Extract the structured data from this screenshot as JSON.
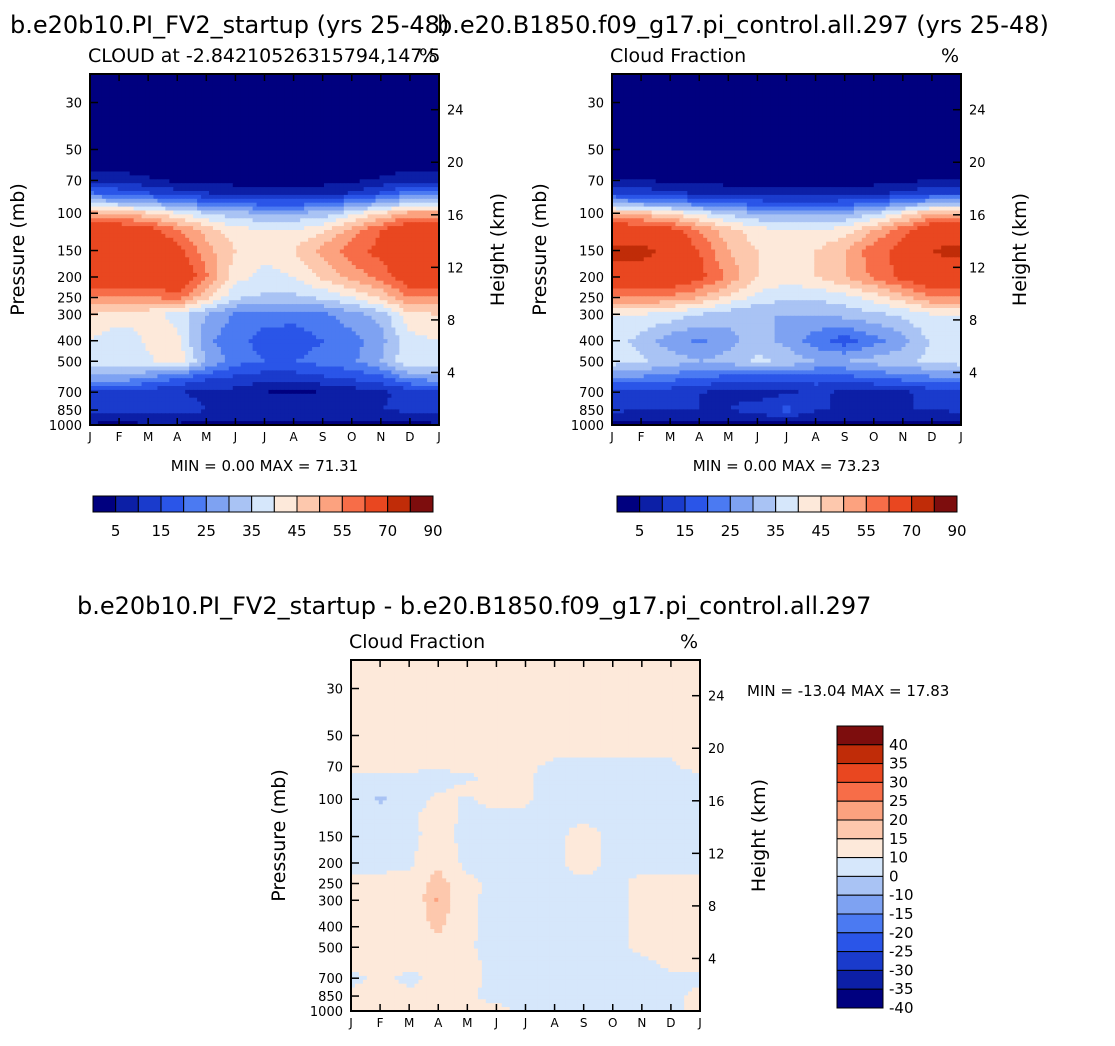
{
  "chart_data": [
    {
      "type": "heatmap",
      "id": "run",
      "main_title": "b.e20b10.PI_FV2_startup (yrs 25-48)",
      "subtitle_left": "CLOUD at -2.84210526315794,147.5",
      "subtitle_right": "%",
      "ylabel": "Pressure (mb)",
      "ylabel_right": "Height (km)",
      "min_max": "MIN =    0.00  MAX =   71.31",
      "x_ticks": [
        "J",
        "F",
        "M",
        "A",
        "M",
        "J",
        "J",
        "A",
        "S",
        "O",
        "N",
        "D",
        "J"
      ],
      "y_ticks": [
        30,
        50,
        70,
        100,
        150,
        200,
        250,
        300,
        400,
        500,
        700,
        850,
        1000
      ],
      "y_range_mb": [
        22,
        1000
      ],
      "height_ticks_km": [
        24,
        20,
        16,
        12,
        8,
        4
      ],
      "colorbar": {
        "levels": [
          5,
          10,
          15,
          20,
          25,
          30,
          35,
          40,
          45,
          50,
          55,
          60,
          70,
          80,
          90
        ],
        "labels": [
          "5",
          "15",
          "25",
          "35",
          "45",
          "55",
          "70",
          "90"
        ],
        "colors": [
          "#00007f",
          "#0c1fa6",
          "#1a3bcc",
          "#2a55e8",
          "#4b7af2",
          "#7ea2f2",
          "#a9c3f4",
          "#d6e7fb",
          "#fde9da",
          "#fdc8ad",
          "#fca27f",
          "#f76d48",
          "#e94720",
          "#c02c08",
          "#7d0d0d"
        ]
      },
      "months": [
        "J",
        "F",
        "M",
        "A",
        "M",
        "J",
        "J",
        "A",
        "S",
        "O",
        "N",
        "D"
      ],
      "profile_levels_mb": [
        22,
        30,
        50,
        60,
        70,
        80,
        90,
        100,
        120,
        150,
        200,
        250,
        300,
        400,
        500,
        600,
        700,
        850,
        1000
      ],
      "grid": [
        [
          0,
          0,
          0,
          0,
          0,
          0,
          0,
          0,
          0,
          0,
          0,
          0
        ],
        [
          0,
          0,
          0,
          0,
          0,
          0,
          0,
          0,
          0,
          0,
          0,
          0
        ],
        [
          1,
          1,
          1,
          1,
          1,
          1,
          1,
          1,
          1,
          1,
          1,
          1
        ],
        [
          3,
          3,
          2,
          2,
          2,
          2,
          2,
          2,
          2,
          2,
          2,
          3
        ],
        [
          9,
          8,
          6,
          4,
          4,
          3,
          3,
          3,
          3,
          4,
          6,
          9
        ],
        [
          20,
          18,
          15,
          12,
          10,
          8,
          8,
          8,
          8,
          10,
          15,
          22
        ],
        [
          35,
          33,
          30,
          26,
          22,
          20,
          18,
          18,
          20,
          25,
          30,
          35
        ],
        [
          52,
          50,
          46,
          40,
          35,
          32,
          30,
          30,
          32,
          38,
          45,
          52
        ],
        [
          66,
          66,
          63,
          56,
          48,
          42,
          40,
          40,
          44,
          52,
          60,
          66
        ],
        [
          70,
          70,
          68,
          62,
          52,
          45,
          42,
          45,
          52,
          58,
          62,
          66
        ],
        [
          65,
          66,
          66,
          68,
          56,
          42,
          38,
          40,
          46,
          52,
          57,
          65
        ],
        [
          55,
          55,
          54,
          58,
          46,
          36,
          34,
          34,
          36,
          40,
          46,
          55
        ],
        [
          45,
          44,
          42,
          38,
          30,
          24,
          22,
          22,
          24,
          28,
          32,
          44
        ],
        [
          40,
          35,
          41,
          42,
          26,
          22,
          18,
          17,
          20,
          23,
          28,
          38
        ],
        [
          38,
          40,
          39,
          44,
          30,
          22,
          20,
          20,
          22,
          24,
          30,
          40
        ],
        [
          28,
          28,
          25,
          20,
          16,
          14,
          12,
          12,
          14,
          16,
          18,
          26
        ],
        [
          14,
          14,
          12,
          10,
          9,
          8,
          5,
          4,
          5,
          7,
          9,
          12
        ],
        [
          12,
          11,
          12,
          13,
          10,
          9,
          9,
          9,
          9,
          10,
          10,
          11
        ],
        [
          4,
          4,
          4,
          4,
          3,
          3,
          3,
          3,
          3,
          3,
          3,
          4
        ]
      ]
    },
    {
      "type": "heatmap",
      "id": "control",
      "main_title": "b.e20.B1850.f09_g17.pi_control.all.297 (yrs 25-48)",
      "subtitle_left": "Cloud Fraction",
      "subtitle_right": "%",
      "ylabel": "Pressure (mb)",
      "ylabel_right": "Height (km)",
      "min_max": "MIN =    0.00  MAX =   73.23",
      "x_ticks": [
        "J",
        "F",
        "M",
        "A",
        "M",
        "J",
        "J",
        "A",
        "S",
        "O",
        "N",
        "D",
        "J"
      ],
      "y_ticks": [
        30,
        50,
        70,
        100,
        150,
        200,
        250,
        300,
        400,
        500,
        700,
        850,
        1000
      ],
      "y_range_mb": [
        22,
        1000
      ],
      "height_ticks_km": [
        24,
        20,
        16,
        12,
        8,
        4
      ],
      "colorbar": {
        "levels": [
          5,
          10,
          15,
          20,
          25,
          30,
          35,
          40,
          45,
          50,
          55,
          60,
          70,
          80,
          90
        ],
        "labels": [
          "5",
          "15",
          "25",
          "35",
          "45",
          "55",
          "70",
          "90"
        ],
        "colors": [
          "#00007f",
          "#0c1fa6",
          "#1a3bcc",
          "#2a55e8",
          "#4b7af2",
          "#7ea2f2",
          "#a9c3f4",
          "#d6e7fb",
          "#fde9da",
          "#fdc8ad",
          "#fca27f",
          "#f76d48",
          "#e94720",
          "#c02c08",
          "#7d0d0d"
        ]
      },
      "months": [
        "J",
        "F",
        "M",
        "A",
        "M",
        "J",
        "J",
        "A",
        "S",
        "O",
        "N",
        "D"
      ],
      "profile_levels_mb": [
        22,
        30,
        50,
        60,
        70,
        80,
        90,
        100,
        120,
        150,
        200,
        250,
        300,
        400,
        500,
        600,
        700,
        850,
        1000
      ],
      "grid": [
        [
          0,
          0,
          0,
          0,
          0,
          0,
          0,
          0,
          0,
          0,
          0,
          0
        ],
        [
          0,
          0,
          0,
          0,
          0,
          0,
          0,
          0,
          0,
          0,
          0,
          0
        ],
        [
          1,
          1,
          1,
          1,
          1,
          1,
          1,
          1,
          1,
          1,
          1,
          1
        ],
        [
          2,
          2,
          2,
          2,
          2,
          2,
          2,
          2,
          2,
          2,
          2,
          2
        ],
        [
          5,
          5,
          4,
          3,
          3,
          3,
          3,
          3,
          3,
          3,
          4,
          5
        ],
        [
          14,
          13,
          11,
          9,
          8,
          7,
          7,
          7,
          7,
          8,
          11,
          14
        ],
        [
          30,
          28,
          26,
          22,
          20,
          18,
          17,
          17,
          18,
          20,
          26,
          30
        ],
        [
          50,
          48,
          44,
          38,
          33,
          30,
          28,
          28,
          30,
          34,
          42,
          50
        ],
        [
          66,
          66,
          63,
          55,
          47,
          42,
          40,
          40,
          42,
          50,
          58,
          66
        ],
        [
          72,
          72,
          68,
          60,
          50,
          45,
          43,
          45,
          50,
          58,
          62,
          70
        ],
        [
          66,
          67,
          67,
          62,
          54,
          45,
          42,
          45,
          50,
          56,
          62,
          67
        ],
        [
          55,
          55,
          54,
          50,
          44,
          38,
          36,
          36,
          38,
          42,
          48,
          55
        ],
        [
          40,
          40,
          38,
          35,
          32,
          30,
          30,
          30,
          32,
          34,
          36,
          40
        ],
        [
          38,
          33,
          27,
          24,
          28,
          33,
          28,
          22,
          17,
          23,
          28,
          36
        ],
        [
          38,
          36,
          33,
          30,
          32,
          36,
          34,
          30,
          30,
          32,
          34,
          36
        ],
        [
          24,
          24,
          22,
          20,
          18,
          18,
          18,
          18,
          18,
          20,
          22,
          24
        ],
        [
          14,
          14,
          12,
          10,
          9,
          8,
          9,
          11,
          9,
          8,
          9,
          12
        ],
        [
          11,
          10,
          10,
          10,
          10,
          12,
          17,
          10,
          10,
          10,
          10,
          10
        ],
        [
          4,
          4,
          4,
          4,
          3,
          3,
          3,
          3,
          3,
          3,
          3,
          4
        ]
      ]
    },
    {
      "type": "heatmap",
      "id": "diff",
      "main_title": "b.e20b10.PI_FV2_startup - b.e20.B1850.f09_g17.pi_control.all.297",
      "subtitle_left": "Cloud Fraction",
      "subtitle_right": "%",
      "ylabel": "Pressure (mb)",
      "ylabel_right": "Height (km)",
      "min_max": "MIN = -13.04  MAX =   17.83",
      "x_ticks": [
        "J",
        "F",
        "M",
        "A",
        "M",
        "J",
        "J",
        "A",
        "S",
        "O",
        "N",
        "D",
        "J"
      ],
      "y_ticks": [
        30,
        50,
        70,
        100,
        150,
        200,
        250,
        300,
        400,
        500,
        700,
        850,
        1000
      ],
      "y_range_mb": [
        22,
        1000
      ],
      "height_ticks_km": [
        24,
        20,
        16,
        12,
        8,
        4
      ],
      "colorbar": {
        "levels": [
          -40,
          -35,
          -30,
          -25,
          -20,
          -15,
          -10,
          0,
          10,
          15,
          20,
          25,
          30,
          35,
          40
        ],
        "labels": [
          "40",
          "35",
          "30",
          "25",
          "20",
          "15",
          "10",
          "0",
          "-10",
          "-15",
          "-20",
          "-25",
          "-30",
          "-35",
          "-40"
        ],
        "colors": [
          "#00007f",
          "#0c1fa6",
          "#1a3bcc",
          "#2a55e8",
          "#4b7af2",
          "#7ea2f2",
          "#a9c3f4",
          "#d6e7fb",
          "#fde9da",
          "#fdc8ad",
          "#fca27f",
          "#f76d48",
          "#e94720",
          "#c02c08",
          "#7d0d0d"
        ]
      },
      "months": [
        "J",
        "F",
        "M",
        "A",
        "M",
        "J",
        "J",
        "A",
        "S",
        "O",
        "N",
        "D"
      ],
      "profile_levels_mb": [
        22,
        30,
        50,
        60,
        70,
        80,
        90,
        100,
        120,
        150,
        200,
        250,
        300,
        400,
        500,
        600,
        700,
        850,
        1000
      ],
      "grid": [
        [
          1,
          1,
          1,
          1,
          1,
          1,
          1,
          1,
          1,
          1,
          1,
          1
        ],
        [
          1,
          1,
          1,
          1,
          1,
          1,
          1,
          1,
          1,
          1,
          1,
          1
        ],
        [
          1,
          1,
          1,
          1,
          1,
          1,
          1,
          1,
          1,
          1,
          1,
          1
        ],
        [
          1,
          1,
          1,
          1,
          1,
          1,
          1,
          1,
          1,
          1,
          1,
          1
        ],
        [
          2,
          2,
          2,
          1,
          1,
          1,
          1,
          -1,
          -1,
          -1,
          -1,
          -1
        ],
        [
          -2,
          -3,
          -3,
          -2,
          -1,
          2,
          1,
          -3,
          -3,
          -2,
          -2,
          -2
        ],
        [
          -3,
          -6,
          -3,
          -1,
          2,
          3,
          1,
          -3,
          -3,
          -3,
          -3,
          -3
        ],
        [
          -3,
          -12,
          -4,
          2,
          -1,
          3,
          1,
          -3,
          -3,
          -3,
          -3,
          -3
        ],
        [
          -3,
          -4,
          -2,
          4,
          -2,
          -2,
          -1,
          -3,
          -3,
          -2,
          -2,
          -3
        ],
        [
          -3,
          -3,
          -2,
          3,
          -3,
          -1,
          -3,
          -3,
          5,
          -3,
          -3,
          -3
        ],
        [
          -3,
          -3,
          -2,
          9,
          -3,
          -3,
          -3,
          -3,
          5,
          -3,
          -3,
          -3
        ],
        [
          2,
          3,
          4,
          14,
          3,
          -3,
          -3,
          -3,
          -3,
          -3,
          3,
          3
        ],
        [
          2,
          3,
          4,
          16,
          2,
          -3,
          -3,
          -3,
          -3,
          -3,
          3,
          3
        ],
        [
          2,
          3,
          4,
          12,
          2,
          -3,
          -3,
          -3,
          -3,
          -3,
          3,
          3
        ],
        [
          2,
          3,
          3,
          6,
          1,
          -3,
          -3,
          -3,
          -3,
          -3,
          2,
          2
        ],
        [
          2,
          2,
          2,
          2,
          2,
          -2,
          -3,
          -3,
          -3,
          -3,
          -2,
          2
        ],
        [
          -2,
          2,
          -2,
          2,
          2,
          -2,
          -2,
          -2,
          -2,
          -2,
          -2,
          -2
        ],
        [
          2,
          2,
          2,
          2,
          1,
          -2,
          -2,
          -2,
          -2,
          -2,
          -2,
          -2
        ],
        [
          2,
          2,
          2,
          2,
          2,
          2,
          -2,
          -2,
          -2,
          -2,
          -2,
          -2
        ]
      ]
    }
  ]
}
